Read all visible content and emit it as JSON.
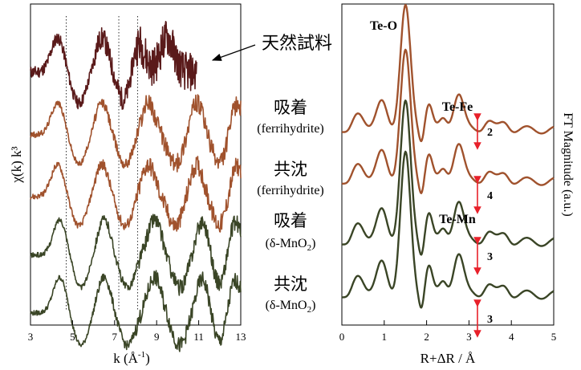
{
  "chart_data": [
    {
      "type": "line",
      "panel": "EXAFS k3-weighted spectra (vertically offset)",
      "xlabel_base": "k (Å",
      "xlabel_sup": "-1",
      "xlabel_end": ")",
      "ylabel": "χ(k) k³",
      "xlim": [
        3,
        13
      ],
      "x_ticks": [
        "3",
        "5",
        "7",
        "9",
        "11",
        "13"
      ],
      "dotted_reference_lines_k": [
        4.7,
        7.2,
        8.1
      ],
      "series": [
        {
          "name": "天然試料",
          "color": "#5a1a1a",
          "x_range": [
            3,
            10.9
          ],
          "peaks_k": [
            4.3,
            6.4,
            8.1,
            9.5
          ],
          "troughs_k": [
            5.3,
            7.5
          ]
        },
        {
          "name": "吸着 (ferrihydrite)",
          "color": "#a0522d",
          "x_range": [
            3,
            13
          ],
          "peaks_k": [
            4.3,
            6.4,
            8.6,
            10.9,
            12.8
          ],
          "troughs_k": [
            5.3,
            7.5,
            9.9,
            12.0
          ]
        },
        {
          "name": "共沈 (ferrihydrite)",
          "color": "#a0522d",
          "x_range": [
            3,
            13
          ],
          "peaks_k": [
            4.3,
            6.4,
            8.6,
            10.9,
            12.8
          ],
          "troughs_k": [
            5.3,
            7.5,
            9.9,
            12.0
          ]
        },
        {
          "name": "吸着 (δ-MnO2)",
          "color": "#3a4526",
          "x_range": [
            3,
            13
          ],
          "peaks_k": [
            4.4,
            6.5,
            8.9,
            11.2,
            12.7
          ],
          "troughs_k": [
            5.4,
            7.6,
            10.1,
            12.0
          ]
        },
        {
          "name": "共沈 (δ-MnO2)",
          "color": "#3a4526",
          "x_range": [
            3,
            13
          ],
          "peaks_k": [
            4.4,
            6.5,
            8.9,
            11.2,
            12.7
          ],
          "troughs_k": [
            5.4,
            7.6,
            10.1,
            12.0
          ]
        }
      ]
    },
    {
      "type": "line",
      "panel": "Fourier transforms (vertically offset)",
      "xlabel": "R+ΔR / Å",
      "ylabel": "FT Magnitude (a.u.)",
      "xlim": [
        0,
        5
      ],
      "x_ticks": [
        "0",
        "1",
        "2",
        "3",
        "4",
        "5"
      ],
      "main_peak_R": 1.5,
      "peak_annotations": [
        "Te-O",
        "Te-Fe",
        "Te-Mn"
      ],
      "coordination_number_labels": [
        "2",
        "4",
        "3",
        "3"
      ],
      "series": [
        {
          "name": "吸着 (ferrihydrite)",
          "color": "#a0522d",
          "second_shell_R": 2.75,
          "cn": "2"
        },
        {
          "name": "共沈 (ferrihydrite)",
          "color": "#a0522d",
          "second_shell_R": 2.75,
          "cn": "4"
        },
        {
          "name": "吸着 (δ-MnO2)",
          "color": "#3a4526",
          "second_shell_R": 2.75,
          "cn": "3"
        },
        {
          "name": "共沈 (δ-MnO2)",
          "color": "#3a4526",
          "second_shell_R": 2.75,
          "cn": "3"
        }
      ]
    }
  ],
  "labels": {
    "natural": "天然試料",
    "adsorbed_1": "吸着",
    "adsorbed_1_sub": "(ferrihydrite)",
    "coprec_1": "共沈",
    "coprec_1_sub": "(ferrihydrite)",
    "adsorbed_2": "吸着",
    "adsorbed_2_sub_pre": "(δ-MnO",
    "adsorbed_2_sub_num": "2",
    "adsorbed_2_sub_post": ")",
    "coprec_2": "共沈",
    "coprec_2_sub_pre": "(δ-MnO",
    "coprec_2_sub_num": "2",
    "coprec_2_sub_post": ")"
  },
  "colors": {
    "natural": "#5a1a1a",
    "ferrihydrite": "#a0522d",
    "mno2": "#3a4526",
    "annotation_red": "#e8202a",
    "axis": "#000000"
  }
}
